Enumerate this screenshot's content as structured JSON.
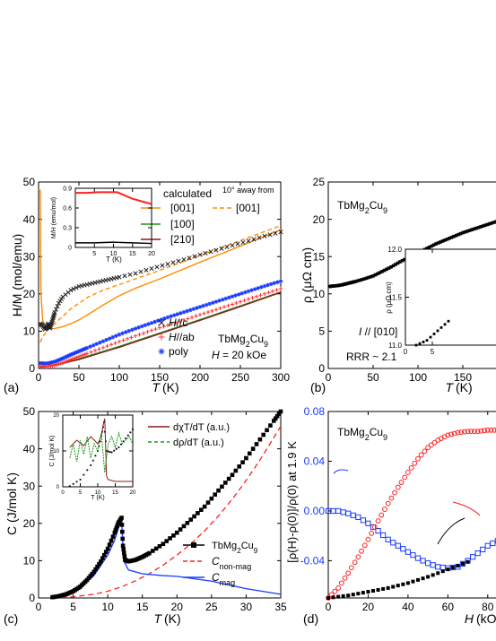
{
  "panels": [
    {
      "id": "a",
      "tag": "(a)",
      "xlabel": "T (K)",
      "ylabel": "H/M (mol/emu)",
      "xlim": [
        0,
        300
      ],
      "ylim": [
        0,
        50
      ],
      "xticks": [
        0,
        50,
        100,
        150,
        200,
        250,
        300
      ],
      "yticks": [
        0,
        10,
        20,
        30,
        40,
        50
      ],
      "legend_calc_title": "calculated",
      "legend_away": "10° away from",
      "legend_calc": [
        {
          "label": "[001]",
          "color": "#ff8c00"
        },
        {
          "label": "[100]",
          "color": "#1a9a1a"
        },
        {
          "label": "[210]",
          "color": "#8b1a1a"
        },
        {
          "label": "[001]",
          "color": "#ff8c00",
          "dashed": true
        }
      ],
      "legend_meas": [
        {
          "label": "H//c",
          "color": "#222222",
          "marker": "x"
        },
        {
          "label": "H//ab",
          "color": "#ff3030",
          "marker": "+"
        },
        {
          "label": "poly",
          "color": "#1a3aff",
          "marker": "*"
        }
      ],
      "compound": "TbMg2Cu9",
      "field": "H = 20 kOe",
      "inset": {
        "ylabel": "M/H (emu/mol)",
        "xlabel": "T (K)",
        "xlim": [
          0,
          20
        ],
        "ylim": [
          0,
          0.9
        ],
        "xticks": [
          5,
          10,
          15,
          20
        ],
        "yticks": [
          0.0,
          0.3,
          0.6,
          0.9
        ]
      },
      "chart_data": {
        "type": "scatter",
        "xlabel": "T (K)",
        "ylabel": "H/M (mol/emu)",
        "series": [
          {
            "name": "H//c",
            "x": [
              2,
              5,
              8,
              10,
              12,
              14,
              16,
              18,
              20,
              25,
              30,
              40,
              50,
              60,
              70,
              80,
              90,
              100,
              120,
              140,
              160,
              180,
              200,
              220,
              240,
              260,
              280,
              300
            ],
            "y": [
              12,
              11.5,
              10.5,
              11,
              12,
              10.8,
              12,
              13.5,
              15,
              17.5,
              19.2,
              21,
              22,
              22.5,
              23,
              23.5,
              24,
              24.5,
              25.5,
              26.8,
              28,
              29.2,
              30.5,
              31.7,
              33,
              34.2,
              35.5,
              36.6
            ]
          },
          {
            "name": "H//ab",
            "x": [
              2,
              10,
              20,
              30,
              40,
              50,
              60,
              80,
              100,
              120,
              140,
              160,
              180,
              200,
              220,
              240,
              260,
              280,
              300
            ],
            "y": [
              0.6,
              0.5,
              0.8,
              1.5,
              2.4,
              3.2,
              4.0,
              5.6,
              7.2,
              8.7,
              10.2,
              11.6,
              13.0,
              14.4,
              15.8,
              17.2,
              18.6,
              20.0,
              21.4
            ]
          },
          {
            "name": "poly",
            "x": [
              2,
              10,
              20,
              30,
              40,
              50,
              60,
              80,
              100,
              120,
              140,
              160,
              180,
              200,
              220,
              240,
              260,
              280,
              300
            ],
            "y": [
              1.4,
              1.3,
              1.8,
              2.7,
              3.7,
              4.6,
              5.5,
              7.3,
              9.1,
              10.7,
              12.2,
              13.7,
              15.1,
              16.5,
              17.9,
              19.3,
              20.7,
              22.1,
              23.4
            ]
          },
          {
            "name": "calculated [001]",
            "x": [
              2,
              3,
              5,
              8,
              10,
              15,
              20,
              30,
              40,
              50,
              60,
              80,
              100,
              120,
              150,
              200,
              250,
              300
            ],
            "y": [
              48,
              20,
              13,
              11.5,
              11,
              10.6,
              10.7,
              11.2,
              12,
              13,
              14.3,
              17,
              19.5,
              21.5,
              24,
              28.5,
              32.8,
              37.2
            ]
          },
          {
            "name": "calculated [100]",
            "x": [
              2,
              10,
              20,
              50,
              100,
              150,
              200,
              250,
              300
            ],
            "y": [
              0.4,
              0.6,
              1.0,
              2.6,
              5.9,
              9.5,
              13.1,
              16.8,
              20.5
            ]
          },
          {
            "name": "calculated [210]",
            "x": [
              2,
              10,
              20,
              50,
              100,
              150,
              200,
              250,
              300
            ],
            "y": [
              0.4,
              0.5,
              0.9,
              2.4,
              5.7,
              9.3,
              12.9,
              16.6,
              20.4
            ]
          },
          {
            "name": "10° away from [001]",
            "x": [
              2,
              5,
              10,
              20,
              30,
              40,
              50,
              60,
              80,
              100,
              150,
              200,
              250,
              300
            ],
            "y": [
              7,
              8.5,
              10,
              12,
              14,
              16,
              17.5,
              19,
              21,
              22.5,
              26.3,
              30.3,
              34.3,
              38.3
            ]
          }
        ]
      }
    },
    {
      "id": "b",
      "tag": "(b)",
      "xlabel": "T (K)",
      "ylabel": "ρ (μΩ cm)",
      "xlim": [
        0,
        200
      ],
      "ylim": [
        0,
        25
      ],
      "xticks": [
        0,
        50,
        100,
        150
      ],
      "yticks": [
        0,
        5,
        10,
        15,
        20,
        25
      ],
      "compound": "TbMg2Cu9",
      "current": "I // [010]",
      "rrr": "RRR ~ 2.1",
      "inset": {
        "ylabel": "ρ (μΩ cm)",
        "xlim": [
          0,
          20
        ],
        "ylim": [
          11.0,
          12.0
        ],
        "yticks": [
          "11.0",
          "11.5",
          "12.0"
        ],
        "xticks": [
          "0",
          "5"
        ]
      },
      "chart_data": {
        "type": "scatter",
        "xlabel": "T (K)",
        "ylabel": "ρ (μΩ cm)",
        "x": [
          2,
          5,
          10,
          15,
          20,
          25,
          30,
          40,
          50,
          60,
          70,
          80,
          90,
          100,
          110,
          120,
          130,
          140,
          150,
          160,
          170,
          180,
          190,
          200
        ],
        "y": [
          11.0,
          11.05,
          11.1,
          11.2,
          11.35,
          11.5,
          11.65,
          12.0,
          12.4,
          13.0,
          13.6,
          14.3,
          14.9,
          15.5,
          16.1,
          16.7,
          17.2,
          17.7,
          18.2,
          18.6,
          19.0,
          19.4,
          19.8,
          20.2
        ]
      }
    },
    {
      "id": "c",
      "tag": "(c)",
      "xlabel": "T (K)",
      "ylabel": "C (J/mol K)",
      "xlim": [
        0,
        35
      ],
      "ylim": [
        0,
        50
      ],
      "xticks": [
        0,
        5,
        10,
        15,
        20,
        25,
        30,
        35
      ],
      "yticks": [
        0,
        10,
        20,
        30,
        40,
        50
      ],
      "legend_top": [
        {
          "label": "dχT/dT (a.u.)",
          "color": "#8b1a1a"
        },
        {
          "label": "dρ/dT (a.u.)",
          "color": "#1a9a1a",
          "dashed": true
        }
      ],
      "legend_bottom": [
        {
          "label": "TbMg2Cu9",
          "color": "#000000",
          "marker": "square"
        },
        {
          "label": "C non-mag",
          "color": "#ff2020",
          "dashed": true
        },
        {
          "label": "C mag",
          "color": "#1a3aff"
        }
      ],
      "inset": {
        "ylabel": "C (J/mol K)",
        "xlabel": "T (K)",
        "xlim": [
          0,
          20
        ],
        "ylim": [
          0,
          20
        ],
        "xticks": [
          0,
          5,
          10,
          15,
          20
        ],
        "yticks": [
          0,
          10,
          20
        ]
      },
      "chart_data": {
        "type": "scatter",
        "xlabel": "T (K)",
        "ylabel": "C (J/mol K)",
        "series": [
          {
            "name": "TbMg2Cu9",
            "x": [
              2,
              3,
              4,
              5,
              6,
              7,
              8,
              9,
              10,
              11,
              11.5,
              12,
              12.2,
              12.5,
              13,
              14,
              15,
              16,
              18,
              20,
              22,
              24,
              26,
              28,
              30,
              32,
              34,
              35
            ],
            "y": [
              0.2,
              0.5,
              1,
              1.8,
              3,
              4.8,
              7,
              9.8,
              13.2,
              17.5,
              20,
              21.5,
              14,
              10.2,
              9.8,
              10.2,
              11,
              12,
              14.5,
              17.5,
              21,
              24.5,
              28.8,
              33,
              37.5,
              42.5,
              47.5,
              50
            ]
          },
          {
            "name": "C non-mag",
            "x": [
              2,
              5,
              8,
              10,
              12,
              14,
              16,
              18,
              20,
              22,
              24,
              26,
              28,
              30,
              32,
              34,
              35
            ],
            "y": [
              0,
              0.3,
              1,
              1.8,
              3,
              4.6,
              6.5,
              8.8,
              11.5,
              14.5,
              18,
              22,
              26.5,
              31.5,
              37,
              43,
              46
            ]
          },
          {
            "name": "C mag",
            "x": [
              2,
              4,
              6,
              8,
              10,
              11,
              11.5,
              12,
              12.3,
              13,
              15,
              18,
              20,
              25,
              30,
              35
            ],
            "y": [
              0.2,
              1,
              2.8,
              6,
              11.5,
              15.5,
              18.5,
              21,
              10,
              7.5,
              6.5,
              6,
              5.8,
              4.5,
              2.5,
              1
            ]
          }
        ]
      }
    },
    {
      "id": "d",
      "tag": "(d)",
      "xlabel": "H (kOe)",
      "ylabel": "[ρ(H)-ρ(0)]/ρ(0) at 1.9 K",
      "xlim": [
        0,
        90
      ],
      "ylim": [
        -0.07,
        0.08
      ],
      "xticks": [
        0,
        20,
        40,
        60,
        80
      ],
      "yticks": [
        "-0.04",
        "0.00",
        "0.04",
        "0.08"
      ],
      "compound": "TbMg2Cu9",
      "chart_data": {
        "type": "scatter",
        "xlabel": "H (kOe)",
        "ylabel": "[ρ(H)-ρ(0)]/ρ(0) at 1.9 K",
        "series": [
          {
            "name": "red circles",
            "x": [
              0,
              5,
              10,
              15,
              20,
              25,
              30,
              35,
              40,
              45,
              50,
              55,
              60,
              65,
              70,
              75,
              80,
              85,
              90
            ],
            "y": [
              -0.07,
              -0.062,
              -0.05,
              -0.037,
              -0.023,
              -0.008,
              0.006,
              0.019,
              0.031,
              0.042,
              0.051,
              0.057,
              0.061,
              0.063,
              0.064,
              0.064,
              0.065,
              0.065,
              0.065
            ]
          },
          {
            "name": "blue squares",
            "x": [
              0,
              5,
              10,
              15,
              20,
              25,
              30,
              35,
              40,
              45,
              50,
              55,
              60,
              65,
              70,
              75,
              80,
              85,
              90
            ],
            "y": [
              0.0,
              0.0,
              -0.002,
              -0.005,
              -0.01,
              -0.016,
              -0.023,
              -0.028,
              -0.033,
              -0.038,
              -0.042,
              -0.045,
              -0.046,
              -0.045,
              -0.04,
              -0.034,
              -0.028,
              -0.024,
              -0.022
            ]
          },
          {
            "name": "black squares",
            "x": [
              0,
              10,
              20,
              30,
              40,
              50,
              60,
              70
            ],
            "y": [
              -0.07,
              -0.068,
              -0.065,
              -0.062,
              -0.058,
              -0.053,
              -0.047,
              -0.041
            ]
          }
        ]
      }
    }
  ]
}
